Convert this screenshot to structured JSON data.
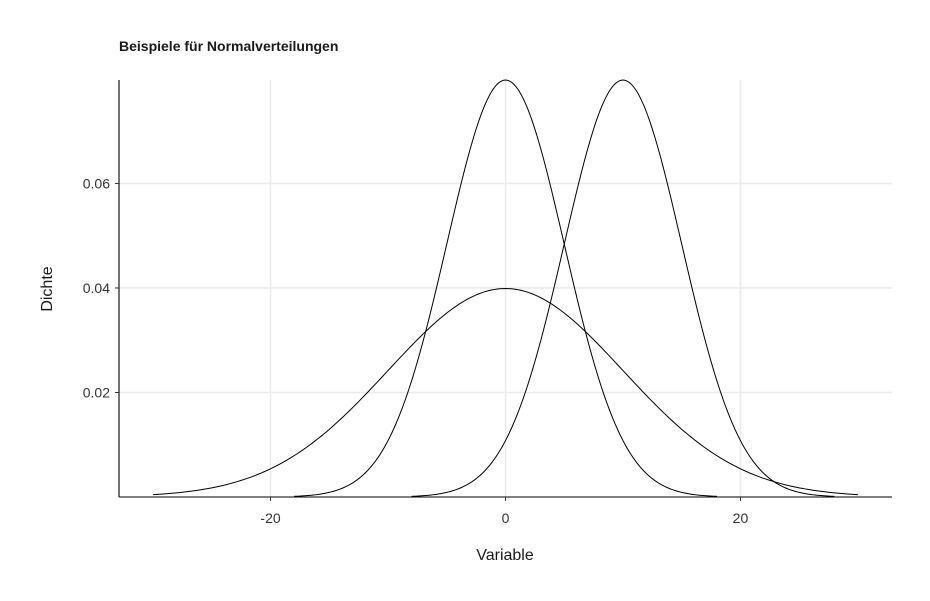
{
  "chart_data": {
    "type": "line",
    "title": "Beispiele für Normalverteilungen",
    "xlabel": "Variable",
    "ylabel": "Dichte",
    "xlim": [
      -32.9,
      32.9
    ],
    "ylim": [
      0,
      0.0798
    ],
    "x_ticks": [
      -20,
      0,
      20
    ],
    "x_tick_labels": [
      "-20",
      "0",
      "20"
    ],
    "y_ticks": [
      0.02,
      0.04,
      0.06
    ],
    "y_tick_labels": [
      "0.02",
      "0.04",
      "0.06"
    ],
    "grid": true,
    "legend": "none",
    "series": [
      {
        "mean": 0,
        "sd": 10,
        "x_range": [
          -30,
          30
        ],
        "peak_density": 0.0399,
        "color": "#000000"
      },
      {
        "mean": 0,
        "sd": 5,
        "x_range": [
          -18,
          18
        ],
        "peak_density": 0.0798,
        "color": "#000000"
      },
      {
        "mean": 10,
        "sd": 5,
        "x_range": [
          -8,
          28
        ],
        "peak_density": 0.0798,
        "color": "#000000"
      }
    ]
  }
}
